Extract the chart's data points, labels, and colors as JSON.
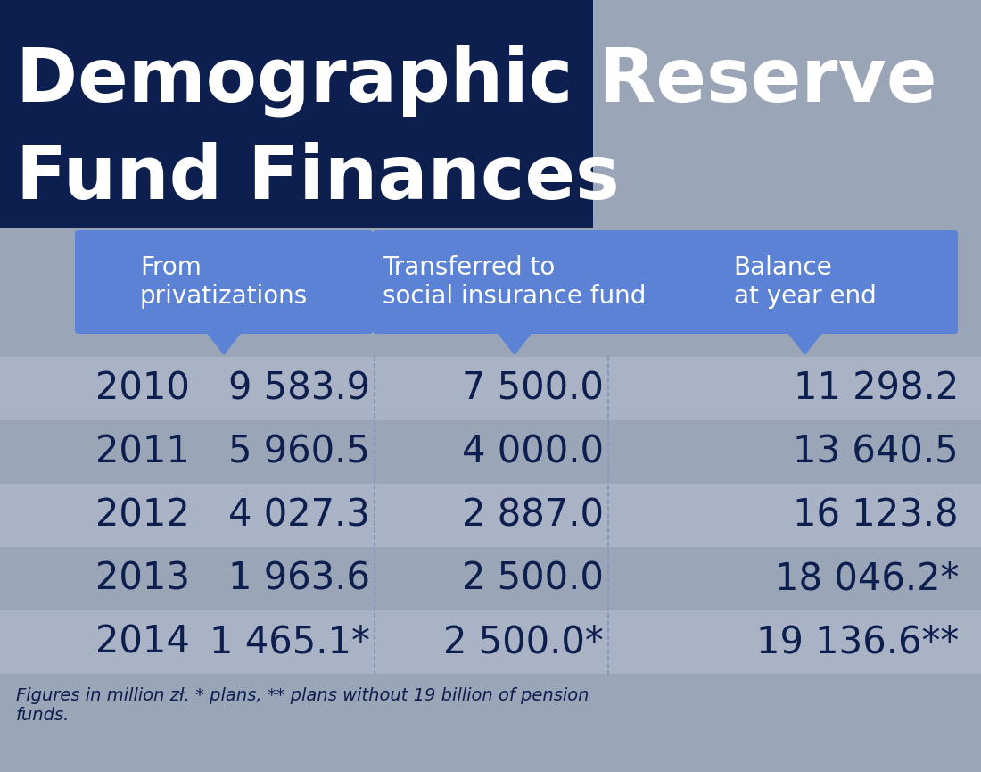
{
  "title_line1": "Demographic Reserve",
  "title_line2": "Fund Finances",
  "title_bg_color": "#0d1f4e",
  "title_text_color": "#ffffff",
  "header_bg_color": "#5b82d4",
  "header_text_color": "#ffffff",
  "headers": [
    "From\nprivatizations",
    "Transferred to\nsocial insurance fund",
    "Balance\nat year end"
  ],
  "years": [
    "2010",
    "2011",
    "2012",
    "2013",
    "2014"
  ],
  "col1": [
    "9 583.9",
    "5 960.5",
    "4 027.3",
    "1 963.6",
    "1 465.1*"
  ],
  "col2": [
    "7 500.0",
    "4 000.0",
    "2 887.0",
    "2 500.0",
    "2 500.0*"
  ],
  "col3": [
    "11 298.2",
    "13 640.5",
    "16 123.8",
    "18 046.2*",
    "19 136.6**"
  ],
  "data_text_color": "#0d1f4e",
  "bg_color": "#9aa5b8",
  "footnote": "Figures in million zł. * plans, ** plans without 19 billion of pension\nfunds.",
  "separator_color": "#8899bb",
  "row_stripe_color": "#c8d0de",
  "fig_width": 11.0,
  "fig_height": 8.65
}
